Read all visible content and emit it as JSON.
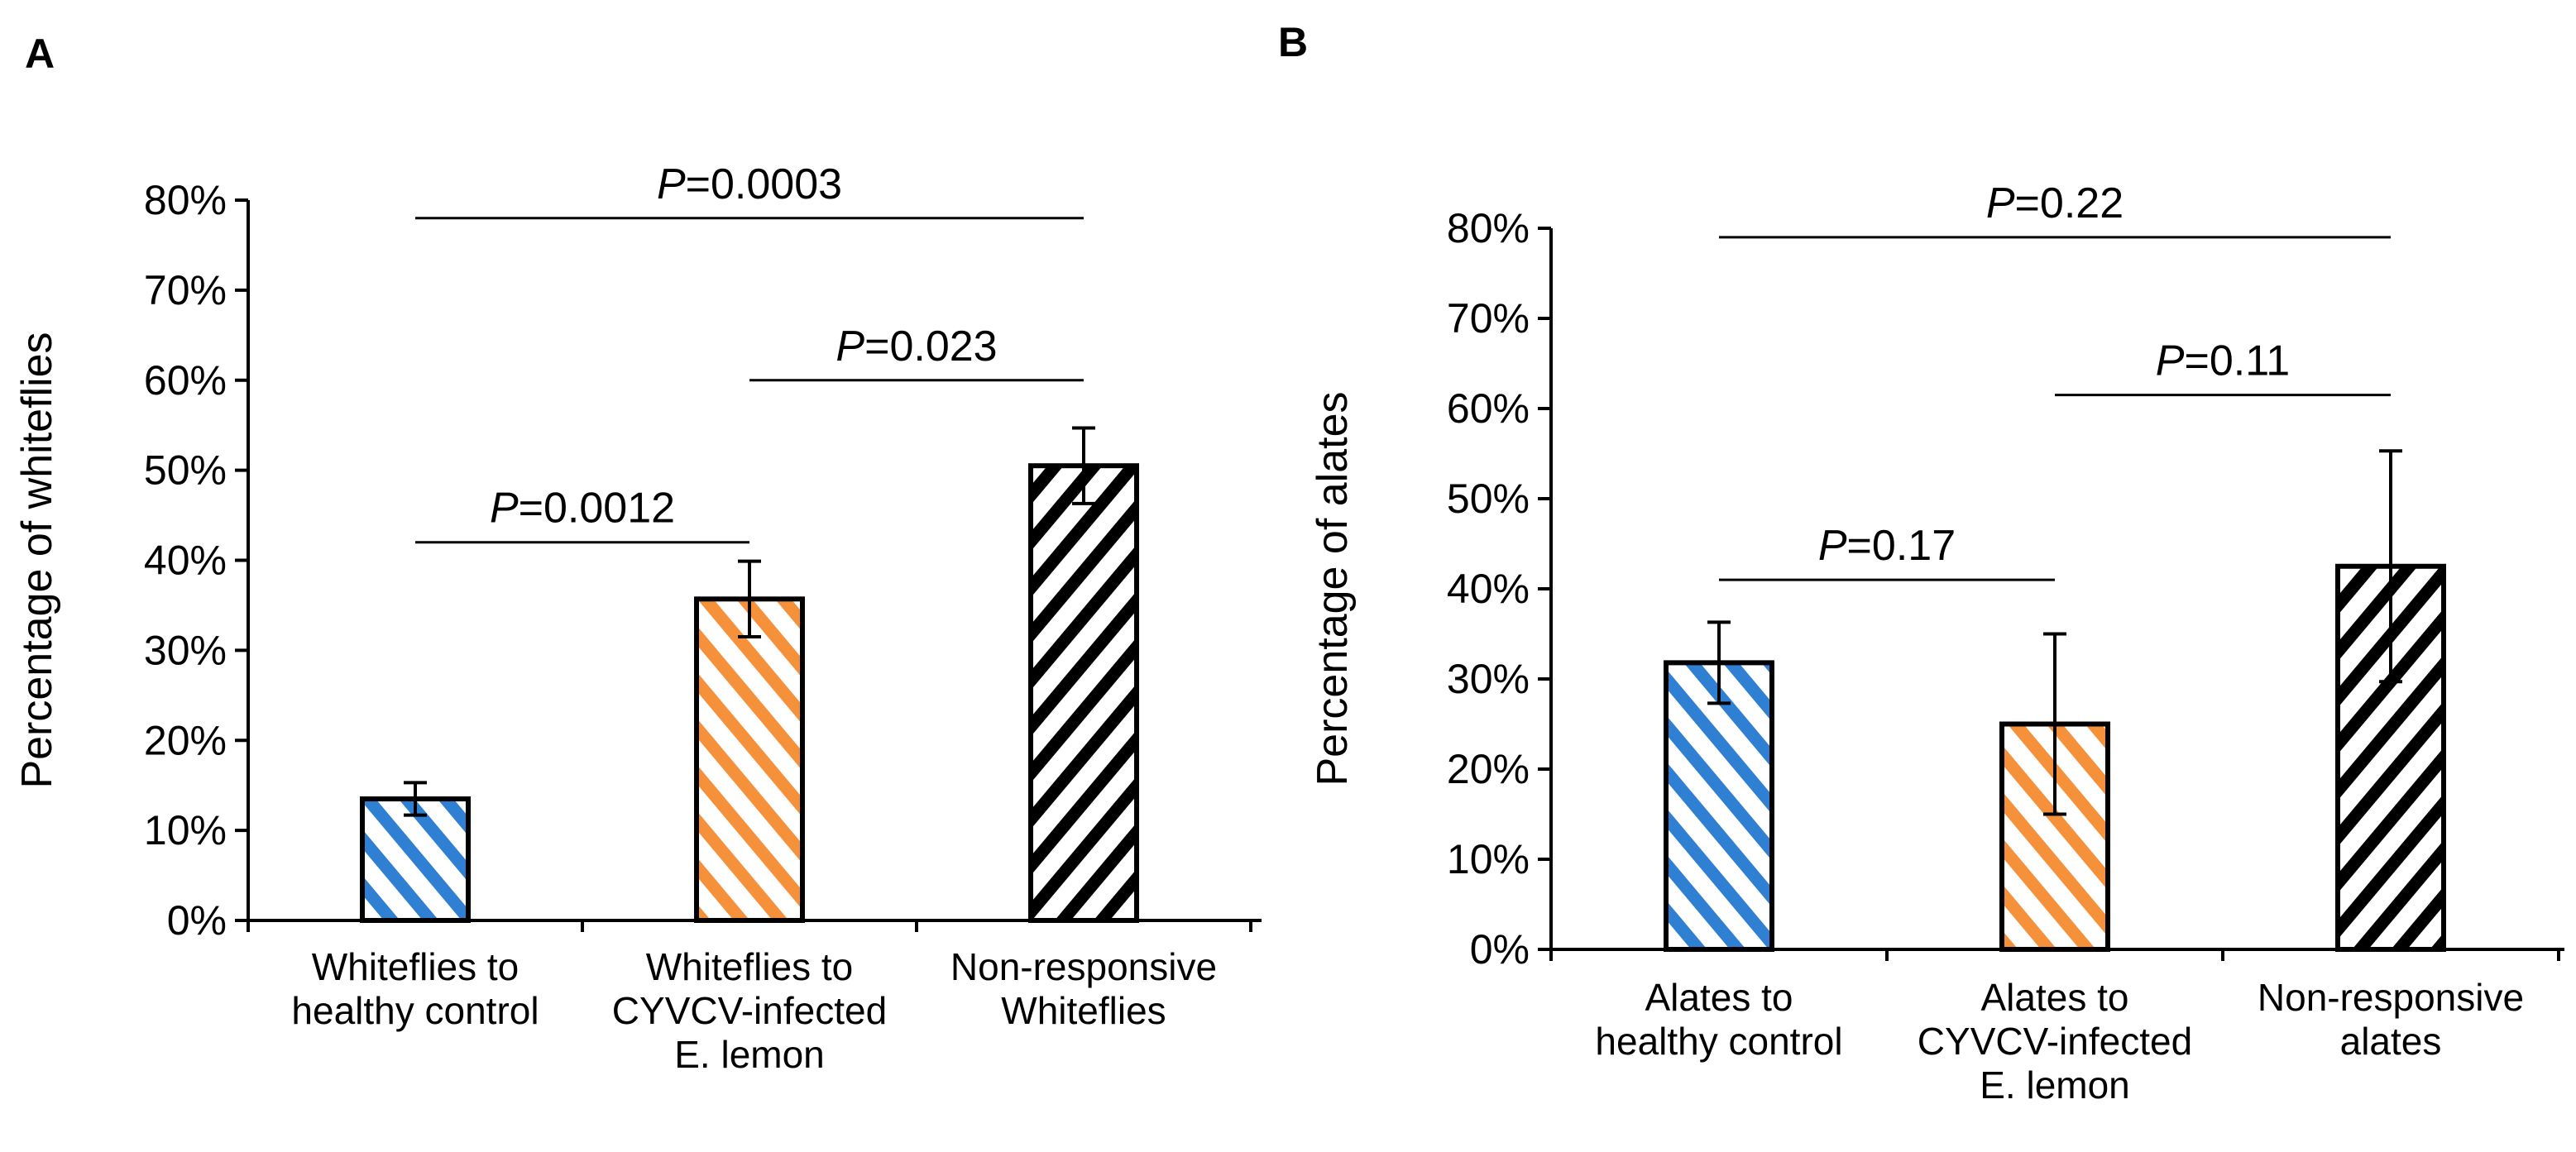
{
  "chart_data": [
    {
      "panel": "A",
      "type": "bar",
      "ylabel": "Percentage of whiteflies",
      "ylim": [
        0,
        0.8
      ],
      "yticks": [
        "0%",
        "10%",
        "20%",
        "30%",
        "40%",
        "50%",
        "60%",
        "70%",
        "80%"
      ],
      "categories": [
        [
          "Whiteflies to",
          "healthy control"
        ],
        [
          "Whiteflies to",
          "CYVCV-infected",
          "E. lemon"
        ],
        [
          "Non-responsive",
          "Whiteflies"
        ]
      ],
      "values": [
        0.135,
        0.357,
        0.505
      ],
      "errors": [
        0.018,
        0.042,
        0.042
      ],
      "colors": [
        "#2f7fd2",
        "#f5913a",
        "#000000"
      ],
      "comparisons": [
        {
          "from": 0,
          "to": 2,
          "p_label": "P",
          "p_value": "=0.0003",
          "y": 0.78
        },
        {
          "from": 1,
          "to": 2,
          "p_label": "P",
          "p_value": "=0.023",
          "y": 0.6
        },
        {
          "from": 0,
          "to": 1,
          "p_label": "P",
          "p_value": "=0.0012",
          "y": 0.42
        }
      ]
    },
    {
      "panel": "B",
      "type": "bar",
      "ylabel": "Percentage of alates",
      "ylim": [
        0,
        0.8
      ],
      "yticks": [
        "0%",
        "10%",
        "20%",
        "30%",
        "40%",
        "50%",
        "60%",
        "70%",
        "80%"
      ],
      "categories": [
        [
          "Alates to",
          "healthy control"
        ],
        [
          "Alates to",
          "CYVCV-infected",
          "E. lemon"
        ],
        [
          "Non-responsive",
          "alates"
        ]
      ],
      "values": [
        0.318,
        0.25,
        0.425
      ],
      "errors": [
        0.045,
        0.1,
        0.128
      ],
      "colors": [
        "#2f7fd2",
        "#f5913a",
        "#000000"
      ],
      "comparisons": [
        {
          "from": 0,
          "to": 2,
          "p_label": "P",
          "p_value": "=0.22",
          "y": 0.79
        },
        {
          "from": 1,
          "to": 2,
          "p_label": "P",
          "p_value": "=0.11",
          "y": 0.615
        },
        {
          "from": 0,
          "to": 1,
          "p_label": "P",
          "p_value": "=0.17",
          "y": 0.41
        }
      ]
    }
  ]
}
